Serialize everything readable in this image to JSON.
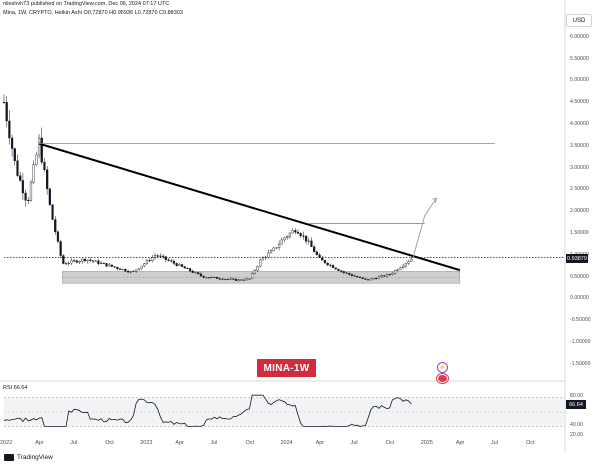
{
  "header": {
    "publisher_line": "nileshvh73 published on TradingView.com, Dec 06, 2024 07:17 UTC",
    "symbol_line": "Mina, 1W, CRYPTO, Heikin Ashi",
    "ohlc": "O0.72870  H0.95936  L0.72870  C0.88303",
    "currency": "USD"
  },
  "price_tag": "0.93879",
  "badge": "MINA-1W",
  "rsi": {
    "label": "RSI 66.64",
    "value_tag": "66.64",
    "ticks": [
      "80.00",
      "40.00",
      "20.00"
    ]
  },
  "brand": "TradingView",
  "icons": [
    "lightning-icon",
    "us-flag-icon",
    "tradingview-logo-icon"
  ],
  "colors": {
    "trendline": "#000000",
    "support_zone": "#bdbdbd",
    "badge": "#d12c3c",
    "rsi_line": "#131722",
    "overbought": "#4caf50"
  },
  "chart_data": {
    "type": "candlestick",
    "title": "",
    "y_axis": {
      "scale": "linear",
      "range": [
        -1.8,
        6.2
      ],
      "ticks": [
        "6.00000",
        "5.50000",
        "5.00000",
        "4.50000",
        "4.00000",
        "3.50000",
        "3.00000",
        "2.50000",
        "2.00000",
        "1.50000",
        "1.00000",
        "0.50000",
        "0.00000",
        "-0.50000",
        "-1.00000",
        "-1.50000"
      ]
    },
    "x_axis": {
      "ticks": [
        "2022",
        "Apr",
        "Jul",
        "Oct",
        "2023",
        "Apr",
        "Jul",
        "Oct",
        "2024",
        "Apr",
        "Jul",
        "Oct",
        "2025",
        "Apr",
        "Jul",
        "Oct"
      ]
    },
    "price_path": [
      [
        "2022-01",
        4.5
      ],
      [
        "2022-02",
        3.0
      ],
      [
        "2022-03",
        2.2
      ],
      [
        "2022-04",
        3.6
      ],
      [
        "2022-05",
        2.0
      ],
      [
        "2022-06",
        0.8
      ],
      [
        "2022-08",
        0.9
      ],
      [
        "2022-10",
        0.75
      ],
      [
        "2022-12",
        0.6
      ],
      [
        "2023-01",
        0.8
      ],
      [
        "2023-02",
        1.0
      ],
      [
        "2023-04",
        0.75
      ],
      [
        "2023-06",
        0.5
      ],
      [
        "2023-09",
        0.42
      ],
      [
        "2023-10",
        0.45
      ],
      [
        "2023-11",
        0.9
      ],
      [
        "2023-12",
        1.1
      ],
      [
        "2024-01",
        1.4
      ],
      [
        "2024-02",
        1.6
      ],
      [
        "2024-03",
        1.3
      ],
      [
        "2024-04",
        0.9
      ],
      [
        "2024-06",
        0.6
      ],
      [
        "2024-08",
        0.42
      ],
      [
        "2024-10",
        0.55
      ],
      [
        "2024-12",
        0.94
      ]
    ],
    "lines": [
      {
        "kind": "descending-trendline",
        "from": [
          "2022-04",
          3.55
        ],
        "to": [
          "2025-04",
          0.65
        ]
      },
      {
        "kind": "horizontal",
        "at": 3.55,
        "from": "2022-04",
        "to": "2025-07"
      },
      {
        "kind": "horizontal",
        "at": 1.72,
        "from": "2024-03",
        "to": "2025-01"
      },
      {
        "kind": "horizontal-dotted",
        "at": 0.94,
        "from": "2022-01",
        "to": "2025-10"
      }
    ],
    "zones": [
      {
        "kind": "support",
        "low": 0.35,
        "high": 0.62,
        "from": "2022-06",
        "to": "2025-04"
      }
    ],
    "projection": [
      [
        "2024-12",
        0.94
      ],
      [
        "2025-01",
        1.9
      ],
      [
        "2025-02",
        2.3
      ]
    ],
    "rsi": {
      "current": 66.64,
      "overbought": 80,
      "oversold": 20
    }
  }
}
